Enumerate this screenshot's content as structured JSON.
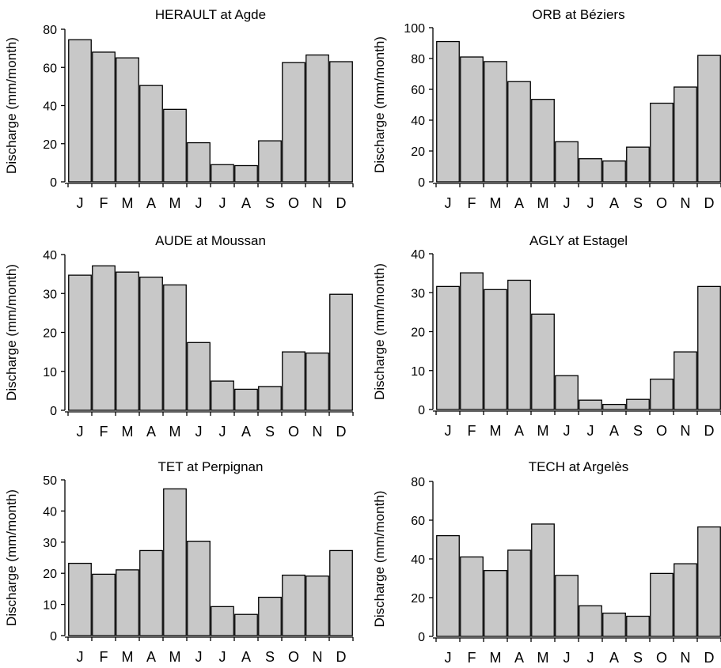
{
  "colors": {
    "bar_fill": "#c8c8c8",
    "bar_stroke": "#000000",
    "background": "#ffffff"
  },
  "chart_data": [
    {
      "type": "bar",
      "title": "HERAULT at Agde",
      "ylabel": "Discharge (mm/month)",
      "xlabel": "",
      "categories": [
        "J",
        "F",
        "M",
        "A",
        "M",
        "J",
        "J",
        "A",
        "S",
        "O",
        "N",
        "D"
      ],
      "values": [
        74.5,
        68,
        65,
        50.5,
        38,
        20.5,
        9,
        8.5,
        21.5,
        62.5,
        66.5,
        63
      ],
      "ylim": [
        0,
        80
      ],
      "yticks": [
        0,
        20,
        40,
        60,
        80
      ],
      "grid": false
    },
    {
      "type": "bar",
      "title": "ORB at Béziers",
      "ylabel": "Discharge (mm/month)",
      "xlabel": "",
      "categories": [
        "J",
        "F",
        "M",
        "A",
        "M",
        "J",
        "J",
        "A",
        "S",
        "O",
        "N",
        "D"
      ],
      "values": [
        91,
        81,
        78,
        65,
        53.5,
        26,
        15,
        13.5,
        22.5,
        51,
        61.5,
        82
      ],
      "ylim": [
        0,
        100
      ],
      "yticks": [
        0,
        20,
        40,
        60,
        80,
        100
      ],
      "grid": false
    },
    {
      "type": "bar",
      "title": "AUDE at Moussan",
      "ylabel": "Discharge (mm/month)",
      "xlabel": "",
      "categories": [
        "J",
        "F",
        "M",
        "A",
        "M",
        "J",
        "J",
        "A",
        "S",
        "O",
        "N",
        "D"
      ],
      "values": [
        34.7,
        37.1,
        35.5,
        34.2,
        32.2,
        17.4,
        7.5,
        5.4,
        6.1,
        15,
        14.7,
        29.8
      ],
      "ylim": [
        0,
        40
      ],
      "yticks": [
        0,
        10,
        20,
        30,
        40
      ],
      "grid": false
    },
    {
      "type": "bar",
      "title": "AGLY at Estagel",
      "ylabel": "Discharge (mm/month)",
      "xlabel": "",
      "categories": [
        "J",
        "F",
        "M",
        "A",
        "M",
        "J",
        "J",
        "A",
        "S",
        "O",
        "N",
        "D"
      ],
      "values": [
        31.6,
        35.1,
        30.8,
        33.2,
        24.5,
        8.7,
        2.4,
        1.3,
        2.6,
        7.8,
        14.8,
        31.6
      ],
      "ylim": [
        0,
        40
      ],
      "yticks": [
        0,
        10,
        20,
        30,
        40
      ],
      "grid": false
    },
    {
      "type": "bar",
      "title": "TET at Perpignan",
      "ylabel": "Discharge (mm/month)",
      "xlabel": "",
      "categories": [
        "J",
        "F",
        "M",
        "A",
        "M",
        "J",
        "J",
        "A",
        "S",
        "O",
        "N",
        "D"
      ],
      "values": [
        23.2,
        19.7,
        21.1,
        27.3,
        47.1,
        30.3,
        9.3,
        6.8,
        12.3,
        19.4,
        19.1,
        27.3
      ],
      "ylim": [
        0,
        50
      ],
      "yticks": [
        0,
        10,
        20,
        30,
        40,
        50
      ],
      "grid": false
    },
    {
      "type": "bar",
      "title": "TECH at Argelès",
      "ylabel": "Discharge (mm/month)",
      "xlabel": "",
      "categories": [
        "J",
        "F",
        "M",
        "A",
        "M",
        "J",
        "J",
        "A",
        "S",
        "O",
        "N",
        "D"
      ],
      "values": [
        52,
        41,
        34,
        44.5,
        58,
        31.5,
        15.8,
        12,
        10.4,
        32.5,
        37.5,
        56.5
      ],
      "ylim": [
        0,
        80
      ],
      "yticks": [
        0,
        20,
        40,
        60,
        80
      ],
      "grid": false
    }
  ]
}
